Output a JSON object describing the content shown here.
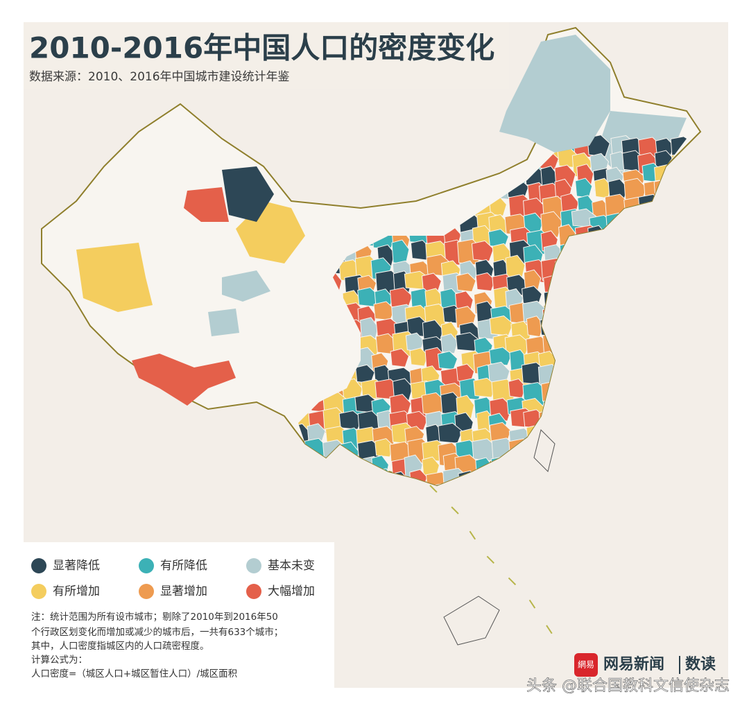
{
  "header": {
    "title": "2010-2016年中国人口的密度变化",
    "subtitle": "数据来源：2010、2016年中国城市建设统计年鉴"
  },
  "legend": [
    {
      "label": "显著降低",
      "color": "#2d4756"
    },
    {
      "label": "有所降低",
      "color": "#3cb1b6"
    },
    {
      "label": "基本未变",
      "color": "#b3cdd1"
    },
    {
      "label": "有所增加",
      "color": "#f4cd5e"
    },
    {
      "label": "显著增加",
      "color": "#ee9b50"
    },
    {
      "label": "大幅增加",
      "color": "#e4604a"
    }
  ],
  "notes": [
    "注：统计范围为所有设市城市；剔除了2010年到2016年50",
    "个行政区划变化而增加或减少的城市后，一共有633个城市；",
    "其中，人口密度指城区内的人口疏密程度。",
    "计算公式为：",
    "人口密度=（城区人口+城区暂住人口）/城区面积"
  ],
  "logo": {
    "badge": "網易",
    "name": "网易新闻",
    "section": "数读"
  },
  "watermark": "头条 @联合国教科文信使杂志"
}
